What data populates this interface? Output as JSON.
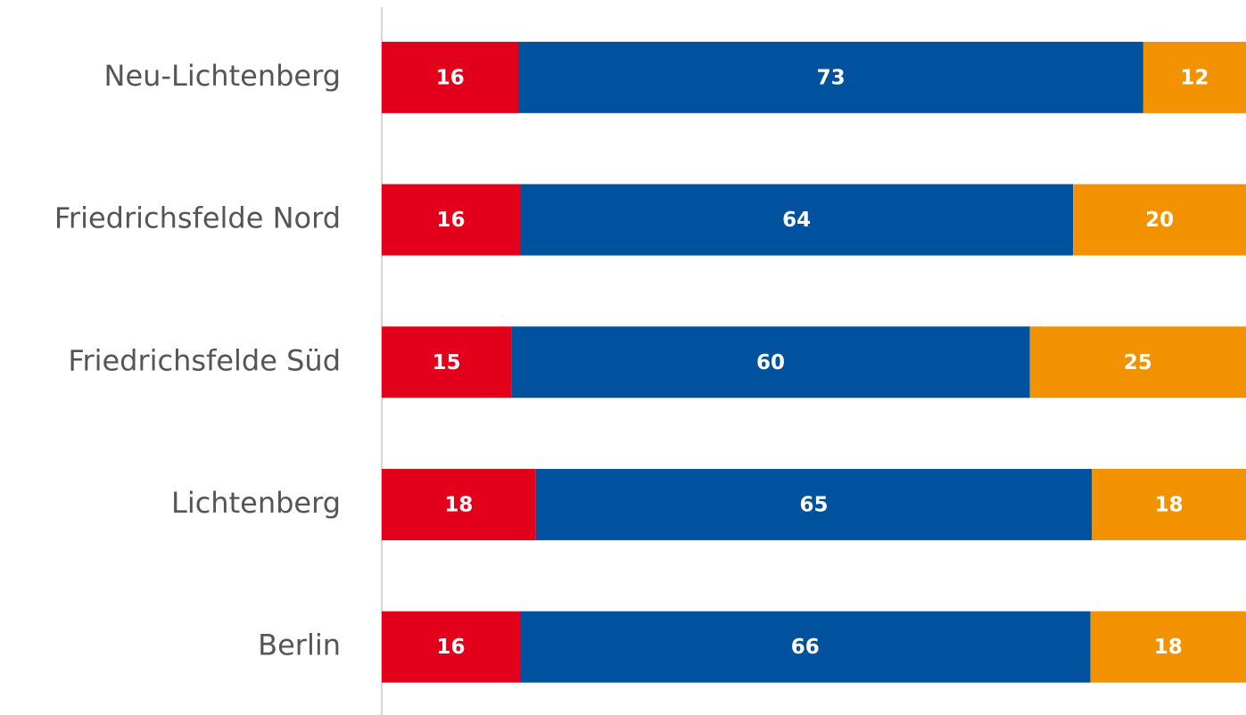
{
  "chart_data": {
    "type": "stacked-bar-horizontal",
    "categories": [
      "Neu-Lichtenberg",
      "Friedrichsfelde Nord",
      "Friedrichsfelde Süd",
      "Lichtenberg",
      "Berlin"
    ],
    "series": [
      {
        "color": "#e2001a",
        "values": [
          16,
          16,
          15,
          18,
          16
        ]
      },
      {
        "color": "#00519e",
        "values": [
          73,
          64,
          60,
          65,
          66
        ]
      },
      {
        "color": "#f39200",
        "values": [
          12,
          20,
          25,
          18,
          18
        ]
      }
    ]
  }
}
